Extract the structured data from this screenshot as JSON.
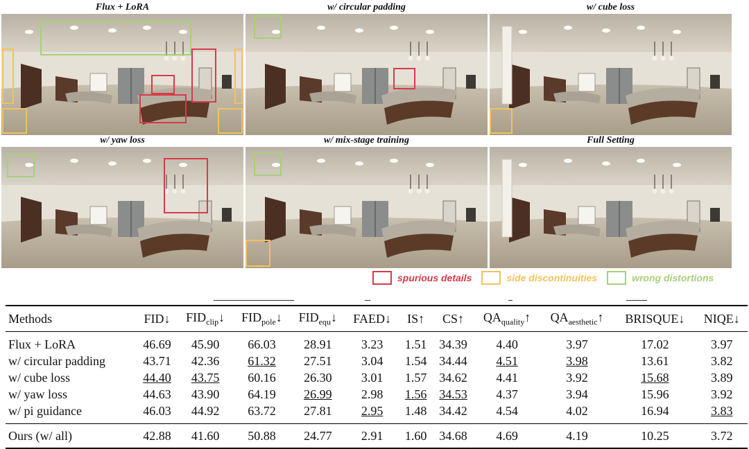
{
  "panels": [
    {
      "title": "Flux + LoRA"
    },
    {
      "title": "w/ circular padding"
    },
    {
      "title": "w/ cube loss"
    },
    {
      "title": "w/ yaw loss"
    },
    {
      "title": "w/ mix-stage training"
    },
    {
      "title": "Full Setting"
    }
  ],
  "legend": {
    "spurious": {
      "label": "spurious details",
      "color": "#d83a4b"
    },
    "side": {
      "label": "side discontinuities",
      "color": "#f2c35b"
    },
    "wrong": {
      "label": "wrong  distortions",
      "color": "#a8cf7a"
    }
  },
  "table": {
    "header": {
      "methods": "Methods",
      "fid": "FID↓",
      "fid_clip": {
        "base": "FID",
        "sub": "clip",
        "arrow": "↓"
      },
      "fid_pole": {
        "base": "FID",
        "sub": "pole",
        "arrow": "↓"
      },
      "fid_equ": {
        "base": "FID",
        "sub": "equ",
        "arrow": "↓"
      },
      "faed": "FAED↓",
      "is": "IS↑",
      "cs": "CS↑",
      "qa_quality": {
        "base": "QA",
        "sub": "quality",
        "arrow": "↑"
      },
      "qa_aesthetic": {
        "base": "QA",
        "sub": "aesthetic",
        "arrow": "↑"
      },
      "brisque": "BRISQUE↓",
      "niqe": "NIQE↓"
    },
    "rows": [
      {
        "method": "Flux + LoRA",
        "values": [
          "46.69",
          "45.90",
          "66.03",
          "28.91",
          "3.23",
          "1.51",
          "34.39",
          "4.40",
          "3.97",
          "17.02",
          "3.97"
        ]
      },
      {
        "method": "w/ circular padding",
        "values": [
          "43.71",
          "42.36",
          "61.32",
          "27.51",
          "3.04",
          "1.54",
          "34.44",
          "4.51",
          "3.98",
          "13.61",
          "3.82"
        ]
      },
      {
        "method": "w/ cube loss",
        "values": [
          "44.40",
          "43.75",
          "60.16",
          "26.30",
          "3.01",
          "1.57",
          "34.62",
          "4.41",
          "3.92",
          "15.68",
          "3.89"
        ]
      },
      {
        "method": "w/ yaw loss",
        "values": [
          "44.63",
          "43.90",
          "64.19",
          "26.99",
          "2.98",
          "1.56",
          "34.53",
          "4.37",
          "3.94",
          "15.96",
          "3.92"
        ]
      },
      {
        "method": "w/ pi guidance",
        "values": [
          "46.03",
          "44.92",
          "63.72",
          "27.81",
          "2.95",
          "1.48",
          "34.42",
          "4.54",
          "4.02",
          "16.94",
          "3.83"
        ]
      }
    ],
    "ours": {
      "method": "Ours (w/ all)",
      "values": [
        "42.88",
        "41.60",
        "50.88",
        "24.77",
        "2.91",
        "1.60",
        "34.68",
        "4.69",
        "4.19",
        "10.25",
        "3.72"
      ]
    }
  }
}
